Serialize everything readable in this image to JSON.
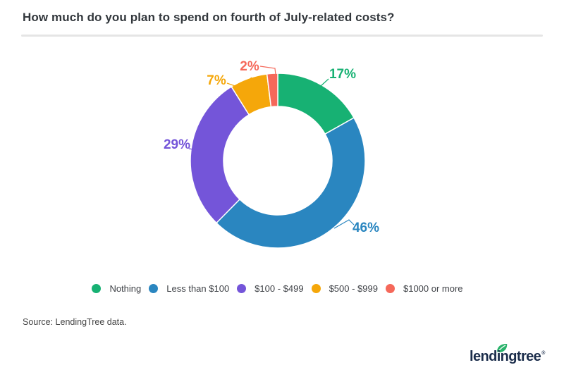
{
  "title": "How much do you plan to spend on fourth of July-related costs?",
  "chart_data": {
    "type": "pie",
    "subtype": "donut",
    "title": "How much do you plan to spend on fourth of July-related costs?",
    "categories": [
      "Nothing",
      "Less than $100",
      "$100 - $499",
      "$500 - $999",
      "$1000 or more"
    ],
    "values": [
      17,
      46,
      29,
      7,
      2
    ],
    "value_labels": [
      "17%",
      "46%",
      "29%",
      "7%",
      "2%"
    ],
    "unit": "%",
    "colors": [
      "#17b173",
      "#2a86c0",
      "#7455d9",
      "#f5a70a",
      "#f5685a"
    ],
    "start_angle_deg": 0,
    "direction": "clockwise",
    "donut_hole_ratio": 0.62,
    "legend_position": "bottom",
    "grid": false
  },
  "legend": {
    "items": [
      {
        "label": "Nothing",
        "color": "#17b173"
      },
      {
        "label": "Less than $100",
        "color": "#2a86c0"
      },
      {
        "label": "$100 - $499",
        "color": "#7455d9"
      },
      {
        "label": "$500 - $999",
        "color": "#f5a70a"
      },
      {
        "label": "$1000 or more",
        "color": "#f5685a"
      }
    ]
  },
  "source": "Source: LendingTree data.",
  "logo": {
    "text": "lendingtree",
    "registered_mark": "®",
    "text_color": "#1b2d4b",
    "leaf_color": "#2ab36b"
  }
}
